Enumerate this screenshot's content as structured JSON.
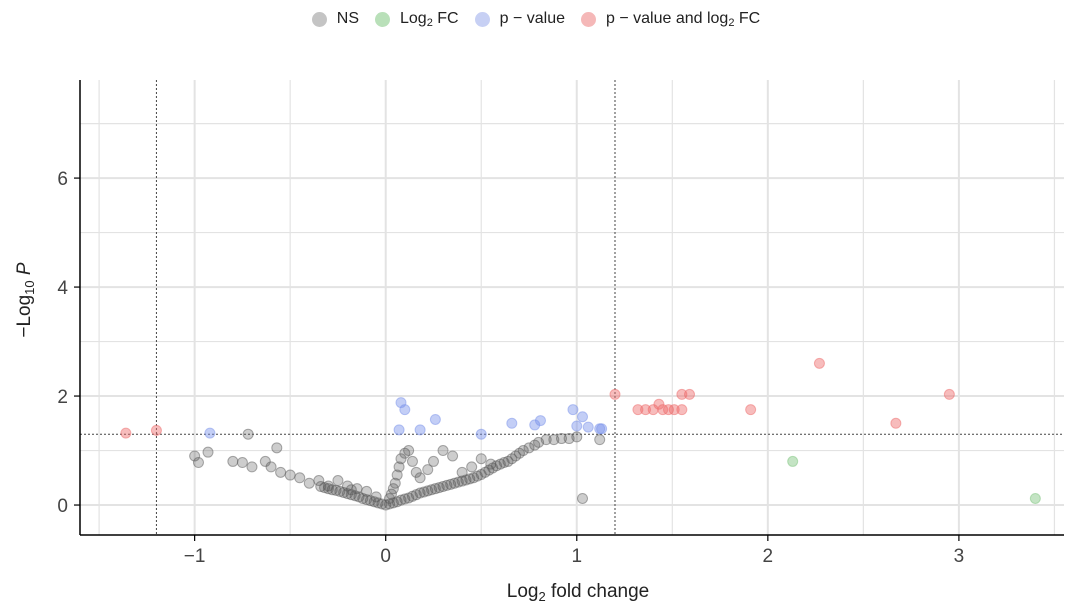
{
  "legend": [
    {
      "name": "NS",
      "color": "#a0a0a0"
    },
    {
      "name": "Log2 FC",
      "color": "#8fcf8f"
    },
    {
      "name": "p - value",
      "color": "#9fb0f0"
    },
    {
      "name": "p - value and log2 FC",
      "color": "#f08a8a"
    }
  ],
  "chart_data": {
    "type": "scatter",
    "title": "",
    "xlabel": "Log2 fold change",
    "ylabel": "-Log10 P",
    "xlim": [
      -1.6,
      3.55
    ],
    "ylim": [
      -0.55,
      7.8
    ],
    "xticks": [
      -1,
      0,
      1,
      2,
      3
    ],
    "xtick_labels": [
      "−1",
      "0",
      "1",
      "2",
      "3"
    ],
    "yticks": [
      0,
      2,
      4,
      6
    ],
    "ytick_labels": [
      "0",
      "2",
      "4",
      "6"
    ],
    "grid": true,
    "legend_position": "top",
    "thresholds": {
      "log2fc": [
        -1.2,
        1.2
      ],
      "neg_log10_p": 1.3
    },
    "series": [
      {
        "name": "NS",
        "color": "#5a5a5a",
        "points": [
          [
            0,
            0
          ],
          [
            -0.02,
            0.02
          ],
          [
            0.02,
            0.02
          ],
          [
            -0.04,
            0.04
          ],
          [
            0.04,
            0.04
          ],
          [
            -0.06,
            0.06
          ],
          [
            0.06,
            0.06
          ],
          [
            -0.08,
            0.08
          ],
          [
            0.08,
            0.09
          ],
          [
            -0.1,
            0.1
          ],
          [
            0.1,
            0.11
          ],
          [
            -0.12,
            0.12
          ],
          [
            0.12,
            0.13
          ],
          [
            -0.14,
            0.15
          ],
          [
            0.14,
            0.16
          ],
          [
            -0.16,
            0.17
          ],
          [
            0.16,
            0.19
          ],
          [
            -0.18,
            0.19
          ],
          [
            0.18,
            0.22
          ],
          [
            -0.2,
            0.21
          ],
          [
            0.2,
            0.24
          ],
          [
            -0.22,
            0.23
          ],
          [
            0.22,
            0.26
          ],
          [
            -0.24,
            0.25
          ],
          [
            0.24,
            0.28
          ],
          [
            -0.26,
            0.27
          ],
          [
            0.26,
            0.3
          ],
          [
            -0.28,
            0.28
          ],
          [
            0.28,
            0.32
          ],
          [
            -0.3,
            0.3
          ],
          [
            0.3,
            0.34
          ],
          [
            -0.32,
            0.32
          ],
          [
            0.32,
            0.36
          ],
          [
            -0.34,
            0.34
          ],
          [
            0.34,
            0.38
          ],
          [
            0.36,
            0.4
          ],
          [
            0.38,
            0.42
          ],
          [
            0.4,
            0.44
          ],
          [
            0.42,
            0.46
          ],
          [
            0.44,
            0.48
          ],
          [
            0.46,
            0.5
          ],
          [
            0.48,
            0.53
          ],
          [
            0.5,
            0.56
          ],
          [
            0.52,
            0.6
          ],
          [
            0.54,
            0.64
          ],
          [
            0.56,
            0.68
          ],
          [
            0.58,
            0.72
          ],
          [
            0.6,
            0.75
          ],
          [
            0.62,
            0.78
          ],
          [
            0.64,
            0.8
          ],
          [
            0.66,
            0.85
          ],
          [
            0.68,
            0.9
          ],
          [
            0.7,
            0.95
          ],
          [
            0.72,
            1.0
          ],
          [
            0.75,
            1.05
          ],
          [
            0.78,
            1.1
          ],
          [
            0.8,
            1.15
          ],
          [
            0.84,
            1.2
          ],
          [
            0.88,
            1.2
          ],
          [
            0.92,
            1.22
          ],
          [
            0.96,
            1.22
          ],
          [
            1.0,
            1.25
          ],
          [
            1.12,
            1.2
          ],
          [
            0.02,
            0.12
          ],
          [
            0.03,
            0.2
          ],
          [
            0.04,
            0.3
          ],
          [
            0.05,
            0.4
          ],
          [
            0.06,
            0.55
          ],
          [
            0.07,
            0.7
          ],
          [
            0.08,
            0.85
          ],
          [
            0.1,
            0.95
          ],
          [
            0.12,
            1.0
          ],
          [
            0.14,
            0.8
          ],
          [
            0.16,
            0.6
          ],
          [
            0.18,
            0.5
          ],
          [
            0.22,
            0.65
          ],
          [
            0.25,
            0.8
          ],
          [
            0.3,
            1.0
          ],
          [
            0.35,
            0.9
          ],
          [
            0.4,
            0.6
          ],
          [
            0.45,
            0.7
          ],
          [
            0.5,
            0.85
          ],
          [
            0.55,
            0.75
          ],
          [
            -0.05,
            0.15
          ],
          [
            -0.1,
            0.25
          ],
          [
            -0.15,
            0.3
          ],
          [
            -0.2,
            0.35
          ],
          [
            -0.3,
            0.35
          ],
          [
            -0.35,
            0.45
          ],
          [
            -0.4,
            0.4
          ],
          [
            -0.45,
            0.5
          ],
          [
            -0.5,
            0.55
          ],
          [
            -0.55,
            0.6
          ],
          [
            -0.6,
            0.7
          ],
          [
            -0.63,
            0.8
          ],
          [
            -0.7,
            0.7
          ],
          [
            -0.75,
            0.78
          ],
          [
            -0.8,
            0.8
          ],
          [
            -0.98,
            0.78
          ],
          [
            -1.0,
            0.9
          ],
          [
            -0.93,
            0.97
          ],
          [
            -0.72,
            1.3
          ],
          [
            -0.57,
            1.05
          ],
          [
            -0.25,
            0.45
          ],
          [
            -0.18,
            0.28
          ],
          [
            1.03,
            0.12
          ]
        ]
      },
      {
        "name": "Log2 FC",
        "color": "#7cc47c",
        "points": [
          [
            2.13,
            0.8
          ],
          [
            3.4,
            0.12
          ]
        ]
      },
      {
        "name": "p - value",
        "color": "#7a92ea",
        "points": [
          [
            -0.92,
            1.32
          ],
          [
            0.08,
            1.88
          ],
          [
            0.1,
            1.75
          ],
          [
            0.07,
            1.38
          ],
          [
            0.18,
            1.38
          ],
          [
            0.26,
            1.57
          ],
          [
            0.5,
            1.3
          ],
          [
            0.66,
            1.5
          ],
          [
            0.78,
            1.47
          ],
          [
            0.81,
            1.55
          ],
          [
            0.98,
            1.75
          ],
          [
            1.0,
            1.45
          ],
          [
            1.03,
            1.62
          ],
          [
            1.06,
            1.43
          ],
          [
            1.12,
            1.4
          ],
          [
            1.13,
            1.4
          ]
        ]
      },
      {
        "name": "p - value and log2 FC",
        "color": "#ee6a6a",
        "points": [
          [
            -1.36,
            1.32
          ],
          [
            -1.2,
            1.37
          ],
          [
            1.2,
            2.03
          ],
          [
            1.32,
            1.75
          ],
          [
            1.36,
            1.75
          ],
          [
            1.4,
            1.75
          ],
          [
            1.43,
            1.85
          ],
          [
            1.45,
            1.75
          ],
          [
            1.48,
            1.75
          ],
          [
            1.51,
            1.75
          ],
          [
            1.55,
            1.75
          ],
          [
            1.55,
            2.03
          ],
          [
            1.59,
            2.03
          ],
          [
            1.91,
            1.75
          ],
          [
            2.27,
            2.6
          ],
          [
            2.67,
            1.5
          ],
          [
            2.95,
            2.03
          ]
        ]
      }
    ]
  }
}
